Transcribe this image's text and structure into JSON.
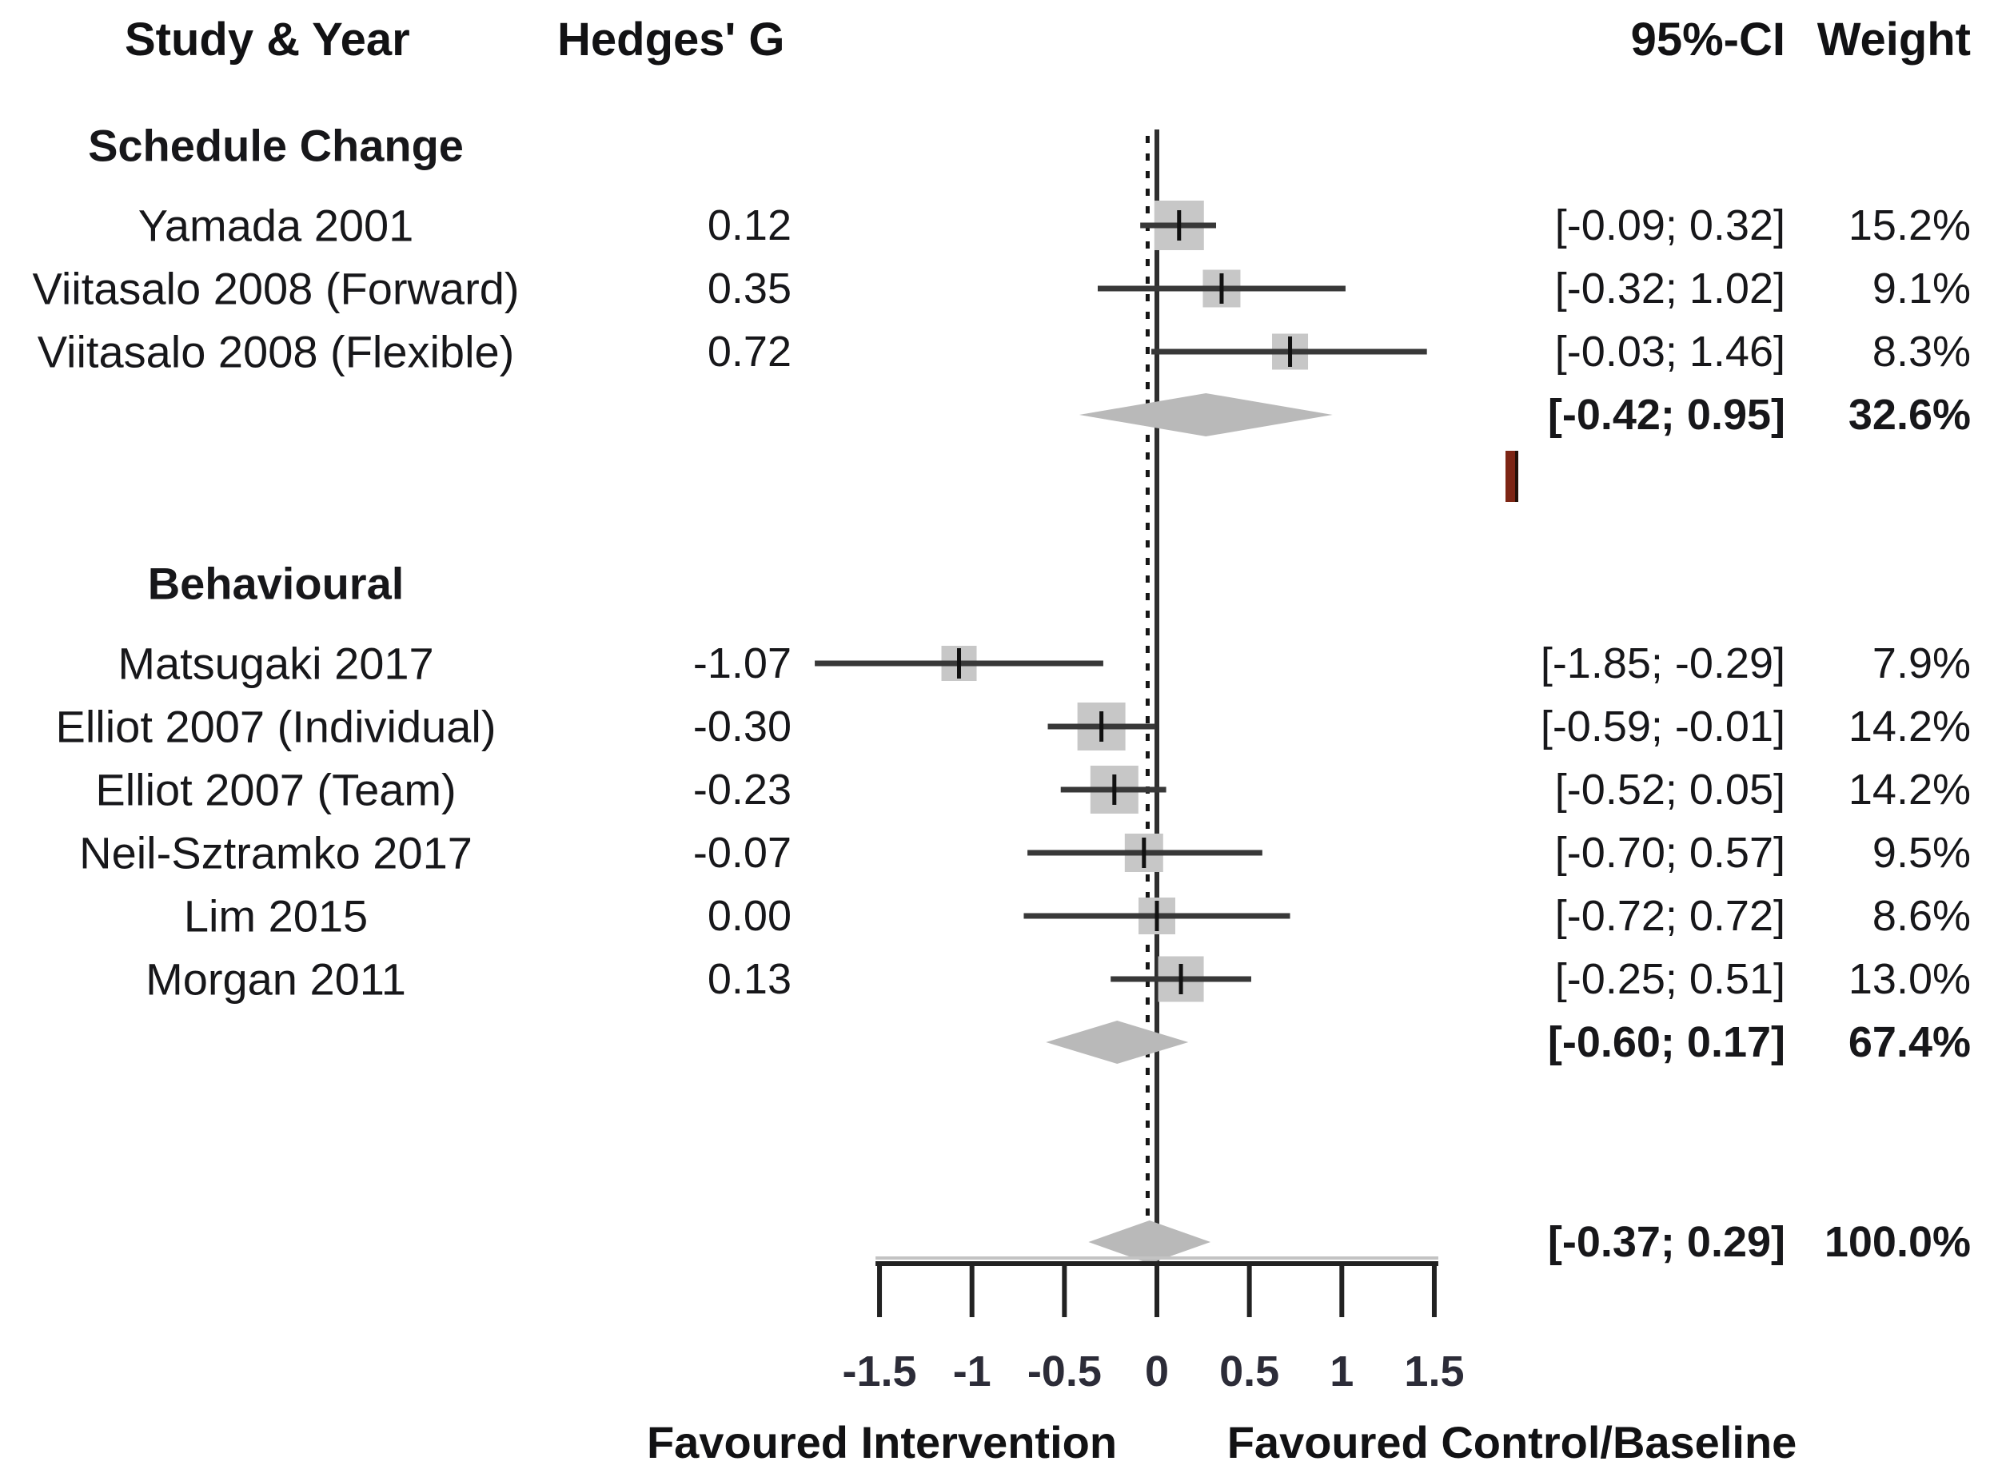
{
  "figure": {
    "columns": {
      "study": "Study & Year",
      "effect": "Hedges' G",
      "ci": "95%-CI",
      "weight": "Weight"
    }
  },
  "chart_data": {
    "type": "forest",
    "effect_measure": "Hedges' G",
    "axis": {
      "range": [
        -1.5,
        1.5
      ],
      "ticks": [
        -1.5,
        -1,
        -0.5,
        0,
        0.5,
        1,
        1.5
      ],
      "tick_labels": [
        "-1.5",
        "-1",
        "-0.5",
        "0",
        "0.5",
        "1",
        "1.5"
      ],
      "zero_line": 0,
      "pooled_effect_line": -0.05,
      "label_left": "Favoured Intervention",
      "label_right": "Favoured Control/Baseline"
    },
    "groups": [
      {
        "name": "Schedule Change",
        "studies": [
          {
            "label": "Yamada 2001",
            "g": "0.12",
            "value": 0.12,
            "ci": [
              -0.09,
              0.32
            ],
            "ci_text": "[-0.09; 0.32]",
            "weight": 15.2,
            "weight_text": "15.2%"
          },
          {
            "label": "Viitasalo 2008 (Forward)",
            "g": "0.35",
            "value": 0.35,
            "ci": [
              -0.32,
              1.02
            ],
            "ci_text": "[-0.32; 1.02]",
            "weight": 9.1,
            "weight_text": "9.1%"
          },
          {
            "label": "Viitasalo 2008 (Flexible)",
            "g": "0.72",
            "value": 0.72,
            "ci": [
              -0.03,
              1.46
            ],
            "ci_text": "[-0.03; 1.46]",
            "weight": 8.3,
            "weight_text": "8.3%"
          }
        ],
        "subtotal": {
          "ci": [
            -0.42,
            0.95
          ],
          "ci_text": "[-0.42;  0.95]",
          "weight_text": "32.6%"
        }
      },
      {
        "name": "Behavioural",
        "studies": [
          {
            "label": "Matsugaki 2017",
            "g": "-1.07",
            "value": -1.07,
            "ci": [
              -1.85,
              -0.29
            ],
            "ci_text": "[-1.85; -0.29]",
            "weight": 7.9,
            "weight_text": "7.9%"
          },
          {
            "label": "Elliot 2007 (Individual)",
            "g": "-0.30",
            "value": -0.3,
            "ci": [
              -0.59,
              -0.01
            ],
            "ci_text": "[-0.59; -0.01]",
            "weight": 14.2,
            "weight_text": "14.2%"
          },
          {
            "label": "Elliot 2007 (Team)",
            "g": "-0.23",
            "value": -0.23,
            "ci": [
              -0.52,
              0.05
            ],
            "ci_text": "[-0.52;  0.05]",
            "weight": 14.2,
            "weight_text": "14.2%"
          },
          {
            "label": "Neil-Sztramko 2017",
            "g": "-0.07",
            "value": -0.07,
            "ci": [
              -0.7,
              0.57
            ],
            "ci_text": "[-0.70;  0.57]",
            "weight": 9.5,
            "weight_text": "9.5%"
          },
          {
            "label": "Lim 2015",
            "g": "0.00",
            "value": 0.0,
            "ci": [
              -0.72,
              0.72
            ],
            "ci_text": "[-0.72;  0.72]",
            "weight": 8.6,
            "weight_text": "8.6%"
          },
          {
            "label": "Morgan 2011",
            "g": "0.13",
            "value": 0.13,
            "ci": [
              -0.25,
              0.51
            ],
            "ci_text": "[-0.25;  0.51]",
            "weight": 13.0,
            "weight_text": "13.0%"
          }
        ],
        "subtotal": {
          "ci": [
            -0.6,
            0.17
          ],
          "ci_text": "[-0.60;  0.17]",
          "weight_text": "67.4%"
        }
      }
    ],
    "total": {
      "ci": [
        -0.37,
        0.29
      ],
      "ci_text": "[-0.37;  0.29]",
      "weight_text": "100.0%"
    }
  }
}
